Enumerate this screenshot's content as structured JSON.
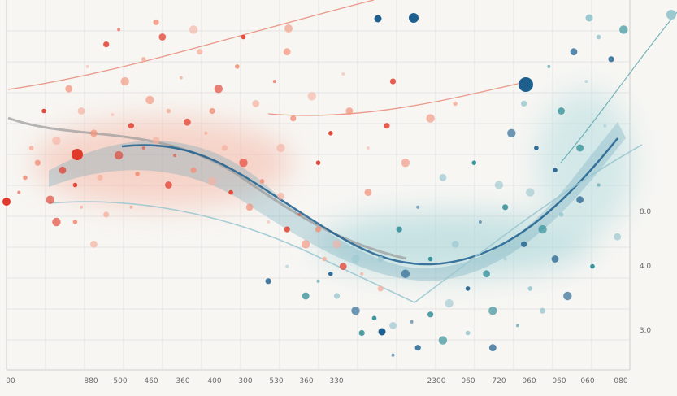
{
  "chart_data": {
    "type": "scatter",
    "title": "",
    "xlabel": "",
    "ylabel": "",
    "grid": true,
    "x_tick_labels": [
      "00",
      "880",
      "500",
      "460",
      "360",
      "400",
      "300",
      "530",
      "360",
      "330",
      "2300",
      "060",
      "720",
      "060",
      "060",
      "060",
      "080"
    ],
    "y_tick_labels": [
      "8.0",
      "4.0",
      "3.0"
    ],
    "colors": {
      "warm": "#e23a2a",
      "warm_light": "#f2917a",
      "cool": "#2a8a94",
      "cool_dark": "#1f5f8e",
      "cool_light": "#9cc8d0",
      "line_warm": "#e88a78",
      "grid": "#e4e4e4"
    },
    "series": [
      {
        "values": [
          [
            0.02,
            0.52
          ],
          [
            0.05,
            0.44
          ],
          [
            0.08,
            0.38
          ],
          [
            0.11,
            0.5
          ],
          [
            0.14,
            0.36
          ],
          [
            0.17,
            0.31
          ],
          [
            0.2,
            0.34
          ],
          [
            0.23,
            0.27
          ],
          [
            0.26,
            0.3
          ],
          [
            0.29,
            0.33
          ],
          [
            0.32,
            0.36
          ],
          [
            0.35,
            0.4
          ],
          [
            0.38,
            0.44
          ],
          [
            0.41,
            0.49
          ],
          [
            0.44,
            0.53
          ],
          [
            0.47,
            0.58
          ],
          [
            0.5,
            0.62
          ],
          [
            0.53,
            0.66
          ],
          [
            0.06,
            0.3
          ],
          [
            0.1,
            0.24
          ],
          [
            0.13,
            0.18
          ],
          [
            0.16,
            0.12
          ],
          [
            0.19,
            0.22
          ],
          [
            0.22,
            0.16
          ],
          [
            0.25,
            0.1
          ],
          [
            0.28,
            0.21
          ],
          [
            0.31,
            0.14
          ],
          [
            0.34,
            0.24
          ],
          [
            0.37,
            0.18
          ],
          [
            0.4,
            0.28
          ],
          [
            0.43,
            0.22
          ],
          [
            0.46,
            0.32
          ],
          [
            0.49,
            0.26
          ],
          [
            0.52,
            0.36
          ],
          [
            0.55,
            0.3
          ],
          [
            0.58,
            0.4
          ],
          [
            0.61,
            0.34
          ],
          [
            0.64,
            0.44
          ],
          [
            0.04,
            0.4
          ],
          [
            0.09,
            0.46
          ],
          [
            0.12,
            0.56
          ],
          [
            0.15,
            0.48
          ],
          [
            0.18,
            0.42
          ],
          [
            0.21,
            0.47
          ],
          [
            0.24,
            0.38
          ],
          [
            0.27,
            0.42
          ],
          [
            0.3,
            0.46
          ],
          [
            0.33,
            0.49
          ],
          [
            0.36,
            0.52
          ],
          [
            0.39,
            0.56
          ],
          [
            0.42,
            0.6
          ],
          [
            0.45,
            0.62
          ],
          [
            0.48,
            0.66
          ],
          [
            0.51,
            0.7
          ],
          [
            0.54,
            0.72
          ],
          [
            0.57,
            0.74
          ],
          [
            0.6,
            0.78
          ],
          [
            0.07,
            0.54
          ],
          [
            0.11,
            0.6
          ],
          [
            0.14,
            0.66
          ],
          [
            0.18,
            0.08
          ],
          [
            0.24,
            0.06
          ],
          [
            0.3,
            0.08
          ],
          [
            0.38,
            0.1
          ],
          [
            0.45,
            0.14
          ],
          [
            0.54,
            0.2
          ],
          [
            0.62,
            0.22
          ],
          [
            0.68,
            0.32
          ],
          [
            0.72,
            0.28
          ],
          [
            0.26,
            0.5
          ],
          [
            0.2,
            0.56
          ],
          [
            0.16,
            0.58
          ],
          [
            0.08,
            0.6
          ],
          [
            0.03,
            0.48
          ],
          [
            0.12,
            0.3
          ],
          [
            0.22,
            0.4
          ],
          [
            0.33,
            0.3
          ],
          [
            0.44,
            0.4
          ],
          [
            0.5,
            0.44
          ],
          [
            0.58,
            0.52
          ]
        ]
      },
      {
        "values": [
          [
            0.5,
            0.76
          ],
          [
            0.53,
            0.8
          ],
          [
            0.56,
            0.84
          ],
          [
            0.59,
            0.86
          ],
          [
            0.62,
            0.88
          ],
          [
            0.65,
            0.87
          ],
          [
            0.68,
            0.85
          ],
          [
            0.71,
            0.82
          ],
          [
            0.74,
            0.78
          ],
          [
            0.77,
            0.74
          ],
          [
            0.8,
            0.7
          ],
          [
            0.83,
            0.66
          ],
          [
            0.86,
            0.62
          ],
          [
            0.89,
            0.58
          ],
          [
            0.92,
            0.54
          ],
          [
            0.95,
            0.5
          ],
          [
            0.6,
            0.7
          ],
          [
            0.64,
            0.74
          ],
          [
            0.68,
            0.7
          ],
          [
            0.72,
            0.66
          ],
          [
            0.76,
            0.6
          ],
          [
            0.8,
            0.56
          ],
          [
            0.84,
            0.52
          ],
          [
            0.88,
            0.46
          ],
          [
            0.92,
            0.4
          ],
          [
            0.96,
            0.34
          ],
          [
            0.66,
            0.94
          ],
          [
            0.7,
            0.92
          ],
          [
            0.74,
            0.9
          ],
          [
            0.78,
            0.94
          ],
          [
            0.82,
            0.88
          ],
          [
            0.86,
            0.84
          ],
          [
            0.9,
            0.8
          ],
          [
            0.94,
            0.72
          ],
          [
            0.98,
            0.64
          ],
          [
            0.62,
            0.96
          ],
          [
            0.57,
            0.9
          ],
          [
            0.79,
            0.5
          ],
          [
            0.85,
            0.4
          ],
          [
            0.89,
            0.3
          ],
          [
            0.93,
            0.22
          ],
          [
            0.97,
            0.16
          ],
          [
            0.99,
            0.08
          ],
          [
            0.95,
            0.1
          ],
          [
            0.91,
            0.14
          ],
          [
            0.87,
            0.18
          ],
          [
            0.83,
            0.28
          ],
          [
            0.81,
            0.36
          ],
          [
            0.75,
            0.44
          ],
          [
            0.7,
            0.48
          ],
          [
            0.66,
            0.56
          ],
          [
            0.63,
            0.62
          ],
          [
            0.56,
            0.7
          ],
          [
            0.52,
            0.74
          ],
          [
            0.48,
            0.8
          ],
          [
            0.45,
            0.72
          ],
          [
            0.42,
            0.76
          ],
          [
            0.78,
            0.84
          ],
          [
            0.84,
            0.78
          ],
          [
            0.88,
            0.7
          ]
        ]
      }
    ]
  }
}
